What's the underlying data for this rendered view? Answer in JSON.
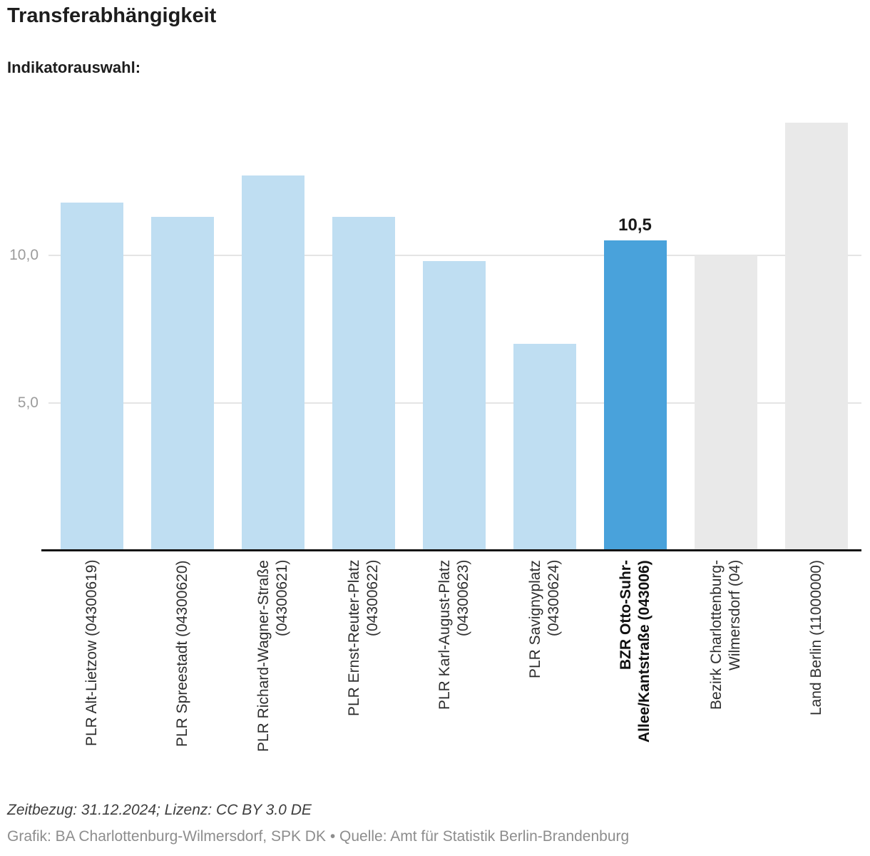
{
  "header": {
    "title": "Transferabhängigkeit",
    "indicator_label": "Indikatorauswahl:"
  },
  "chart_data": {
    "type": "bar",
    "title": "Transferabhängigkeit",
    "categories": [
      "PLR Alt-Lietzow (04300619)",
      "PLR Spreestadt (04300620)",
      "PLR Richard-Wagner-Straße (04300621)",
      "PLR Ernst-Reuter-Platz (04300622)",
      "PLR Karl-August-Platz (04300623)",
      "PLR Savignyplatz (04300624)",
      "BZR Otto-Suhr-Allee/Kantstraße (043006)",
      "Bezirk Charlottenburg-Wilmersdorf (04)",
      "Land Berlin (11000000)"
    ],
    "category_label_lines": [
      [
        "PLR Alt-Lietzow (04300619)"
      ],
      [
        "PLR Spreestadt (04300620)"
      ],
      [
        "PLR Richard-Wagner-Straße",
        "(04300621)"
      ],
      [
        "PLR Ernst-Reuter-Platz",
        "(04300622)"
      ],
      [
        "PLR Karl-August-Platz",
        "(04300623)"
      ],
      [
        "PLR Savignyplatz",
        "(04300624)"
      ],
      [
        "BZR Otto-Suhr-",
        "Allee/Kantstraße (043006)"
      ],
      [
        "Bezirk Charlottenburg-",
        "Wilmersdorf (04)"
      ],
      [
        "Land Berlin (11000000)"
      ]
    ],
    "values": [
      11.8,
      11.3,
      12.7,
      11.3,
      9.8,
      7.0,
      10.5,
      10.0,
      14.5
    ],
    "value_labels": [
      "",
      "",
      "",
      "",
      "",
      "",
      "10,5",
      "",
      ""
    ],
    "highlighted_index": 6,
    "bar_color_roles": [
      "default",
      "default",
      "default",
      "default",
      "default",
      "default",
      "highlight",
      "reference",
      "reference"
    ],
    "bar_colors": {
      "default": "#bfdef2",
      "highlight": "#49a2db",
      "reference": "#e9e9e9"
    },
    "yticks": [
      {
        "value": 5,
        "label": "5,0"
      },
      {
        "value": 10,
        "label": "10,0"
      }
    ],
    "ylim": [
      0,
      15.03
    ],
    "xlabel": "",
    "ylabel": "",
    "grid": "horizontal-only",
    "legend": "none"
  },
  "footer": {
    "line1": "Zeitbezug: 31.12.2024; Lizenz: CC BY 3.0 DE",
    "line2": "Grafik: BA Charlottenburg-Wilmersdorf, SPK DK • Quelle: Amt für Statistik Berlin-Brandenburg"
  },
  "colors": {
    "bar_default": "#bfdef2",
    "bar_highlight": "#49a2db",
    "bar_reference": "#e9e9e9",
    "gridline": "#e4e4e4",
    "axis_line": "#131313",
    "ytick_text": "#9c9c9c",
    "xtick_text": "#2e2e2e"
  }
}
